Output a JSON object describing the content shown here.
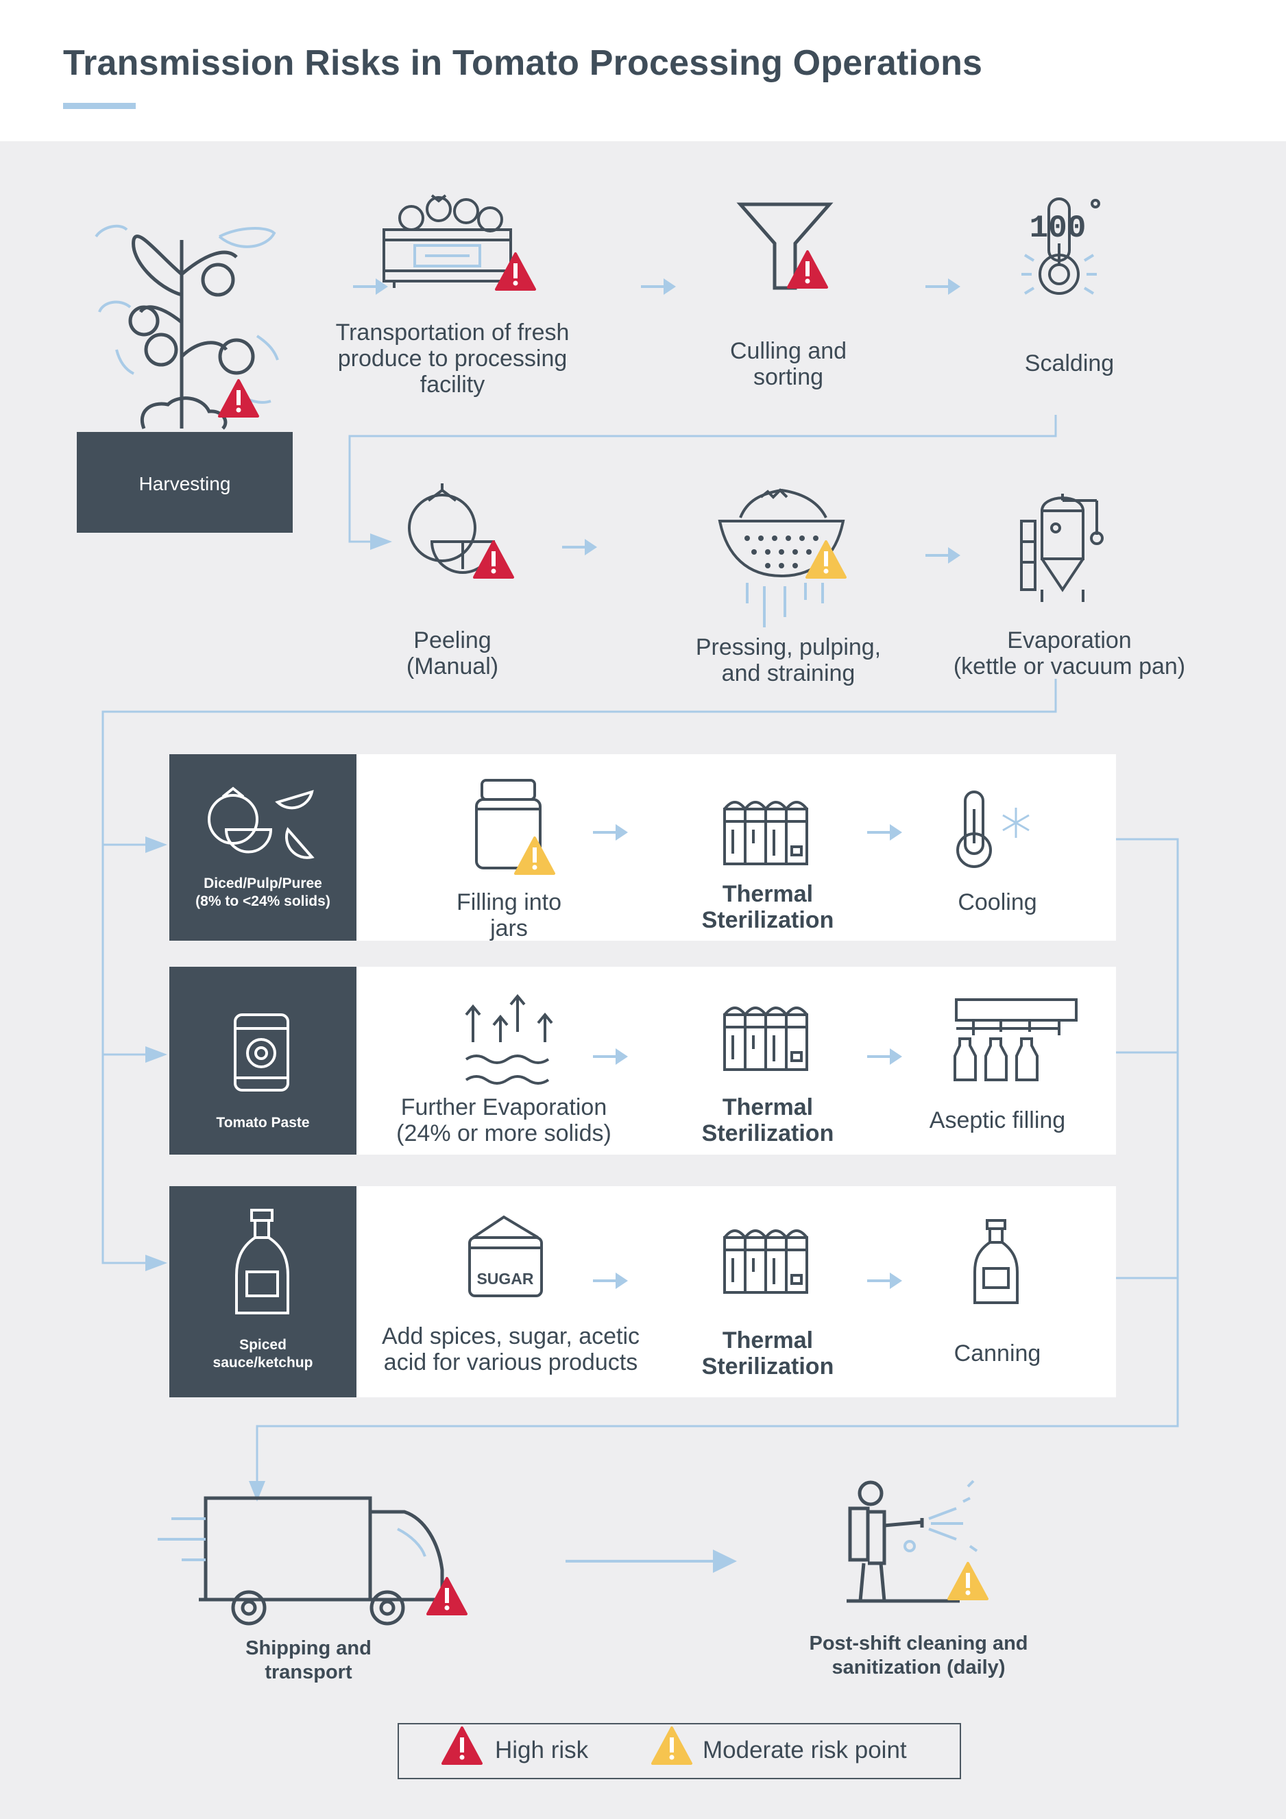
{
  "title": "Transmission Risks in Tomato Processing Operations",
  "colors": {
    "accent": "#a9cbe7",
    "dark": "#434f5a",
    "high_risk": "#d2213f",
    "moderate_risk": "#f6c44f",
    "panel": "#eeeef0"
  },
  "steps": {
    "harvesting": "Harvesting",
    "transportation": [
      "Transportation of fresh",
      "produce to processing",
      "facility"
    ],
    "culling": [
      "Culling and",
      "sorting"
    ],
    "scalding": "Scalding",
    "peeling": [
      "Peeling",
      "(Manual)"
    ],
    "pressing": [
      "Pressing, pulping,",
      "and straining"
    ],
    "evaporation": [
      "Evaporation",
      "(kettle or vacuum pan)"
    ],
    "scalding_icon_text": "100"
  },
  "rows": [
    {
      "category": [
        "Diced/Pulp/Puree",
        "(8% to <24% solids)"
      ],
      "step1": [
        "Filling into",
        "jars"
      ],
      "step2": [
        "Thermal",
        "Sterilization"
      ],
      "step3": "Cooling"
    },
    {
      "category": [
        "Tomato Paste"
      ],
      "step1": [
        "Further Evaporation",
        "(24% or more solids)"
      ],
      "step2": [
        "Thermal",
        "Sterilization"
      ],
      "step3": "Aseptic filling"
    },
    {
      "category": [
        "Spiced",
        "sauce/ketchup"
      ],
      "step1": [
        "Add spices, sugar, acetic",
        "acid for various products"
      ],
      "step2": [
        "Thermal",
        "Sterilization"
      ],
      "step3": "Canning",
      "sugar_label": "SUGAR"
    }
  ],
  "final": {
    "shipping": [
      "Shipping and",
      "transport"
    ],
    "cleaning": [
      "Post-shift cleaning and",
      "sanitization (daily)"
    ]
  },
  "legend": {
    "high": "High risk",
    "moderate": "Moderate risk point"
  }
}
